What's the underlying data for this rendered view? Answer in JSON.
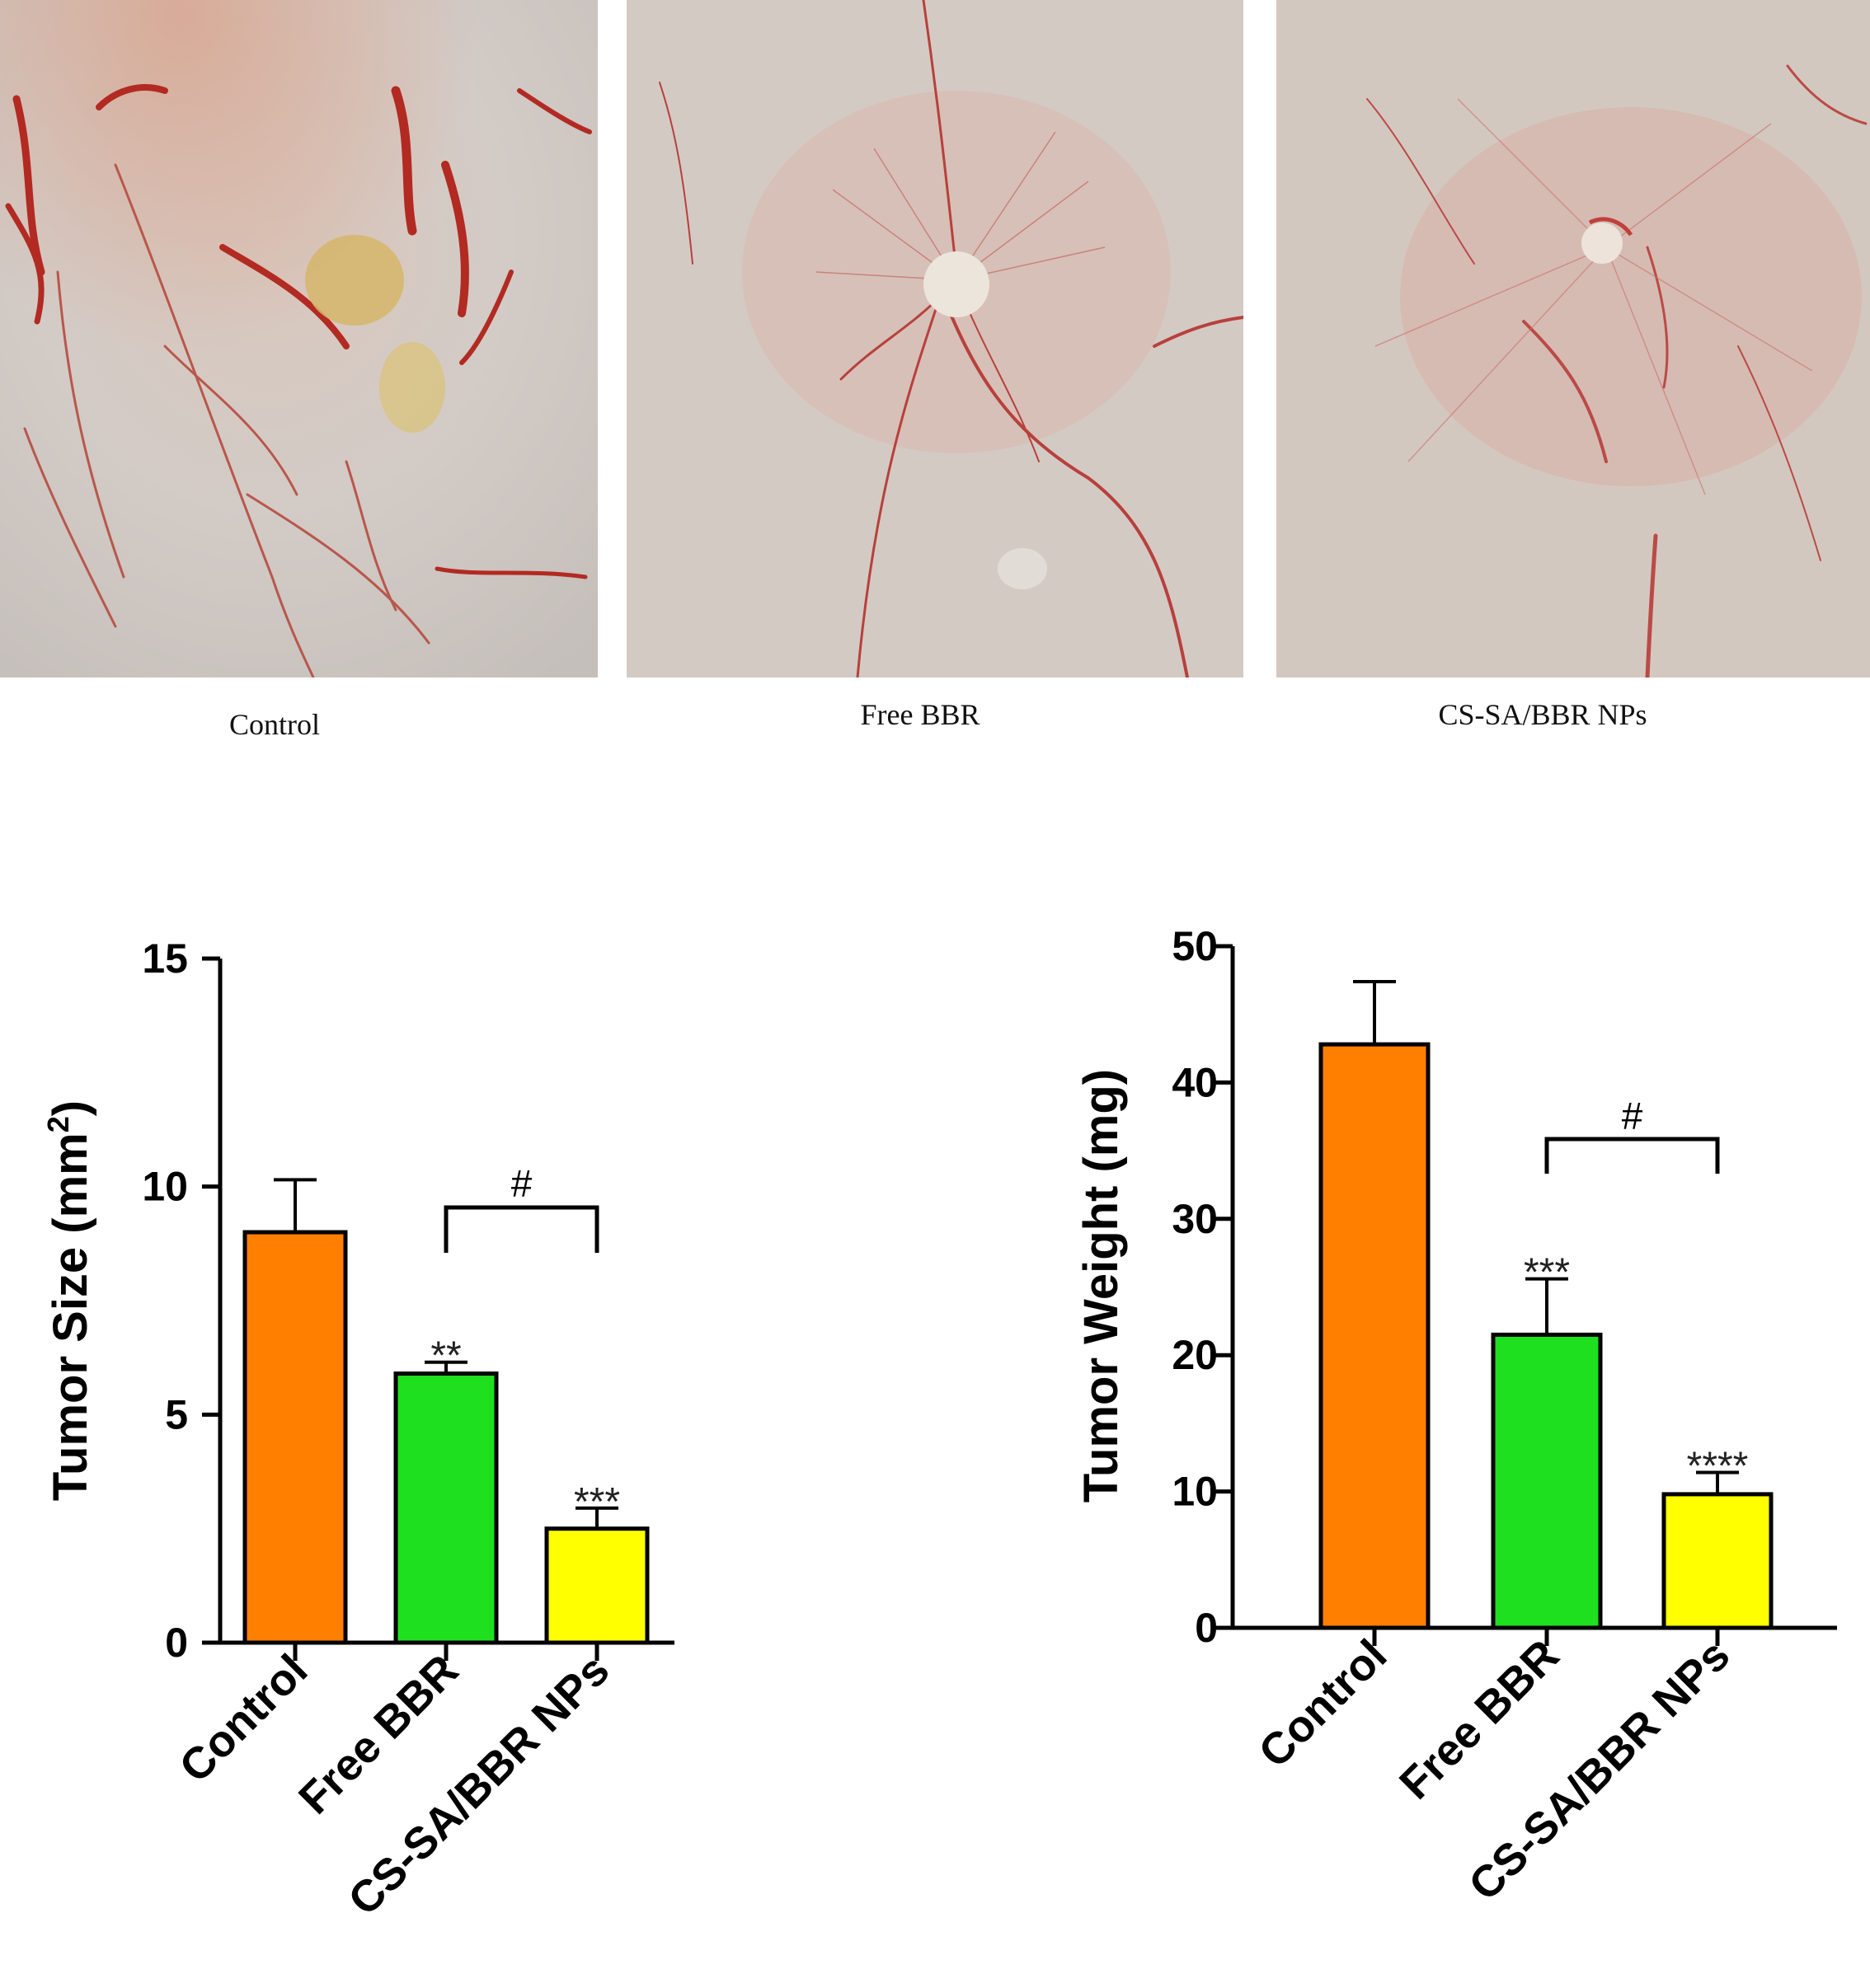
{
  "figure": {
    "photo_panels": [
      {
        "caption": "Control"
      },
      {
        "caption": "Free BBR"
      },
      {
        "caption": "CS-SA/BBR NPs"
      }
    ]
  },
  "colors": {
    "control": "#FF7F00",
    "free_bbr": "#1EE01E",
    "cs_sa_bbr_nps": "#FFFF00",
    "axis": "#000000"
  },
  "chart_data": [
    {
      "type": "bar",
      "categories": [
        "Control",
        "Free BBR",
        "CS-SA/BBR NPs"
      ],
      "values": [
        9.0,
        5.9,
        2.5
      ],
      "errors": [
        1.15,
        0.25,
        0.45
      ],
      "significance": [
        "",
        "**",
        "***"
      ],
      "bracket": {
        "from": "Free BBR",
        "to": "CS-SA/BBR NPs",
        "label": "#"
      },
      "ylabel": "Tumor Size (mm",
      "ylabel_sup": "2",
      "ylabel_close": ")",
      "ylim": [
        0,
        15
      ],
      "yticks": [
        0,
        5,
        10,
        15
      ],
      "ytick_labels": [
        "0",
        "5",
        "10",
        "15"
      ]
    },
    {
      "type": "bar",
      "categories": [
        "Control",
        "Free BBR",
        "CS-SA/BBR NPs"
      ],
      "values": [
        42.8,
        21.5,
        9.8
      ],
      "errors": [
        4.6,
        4.1,
        1.6
      ],
      "significance": [
        "",
        "***",
        "****"
      ],
      "bracket": {
        "from": "Free BBR",
        "to": "CS-SA/BBR NPs",
        "label": "#"
      },
      "ylabel": "Tumor Weight (mg)",
      "ylim": [
        0,
        50
      ],
      "yticks": [
        0,
        10,
        20,
        30,
        40,
        50
      ],
      "ytick_labels": [
        "0",
        "10",
        "20",
        "30",
        "40",
        "50"
      ]
    }
  ]
}
